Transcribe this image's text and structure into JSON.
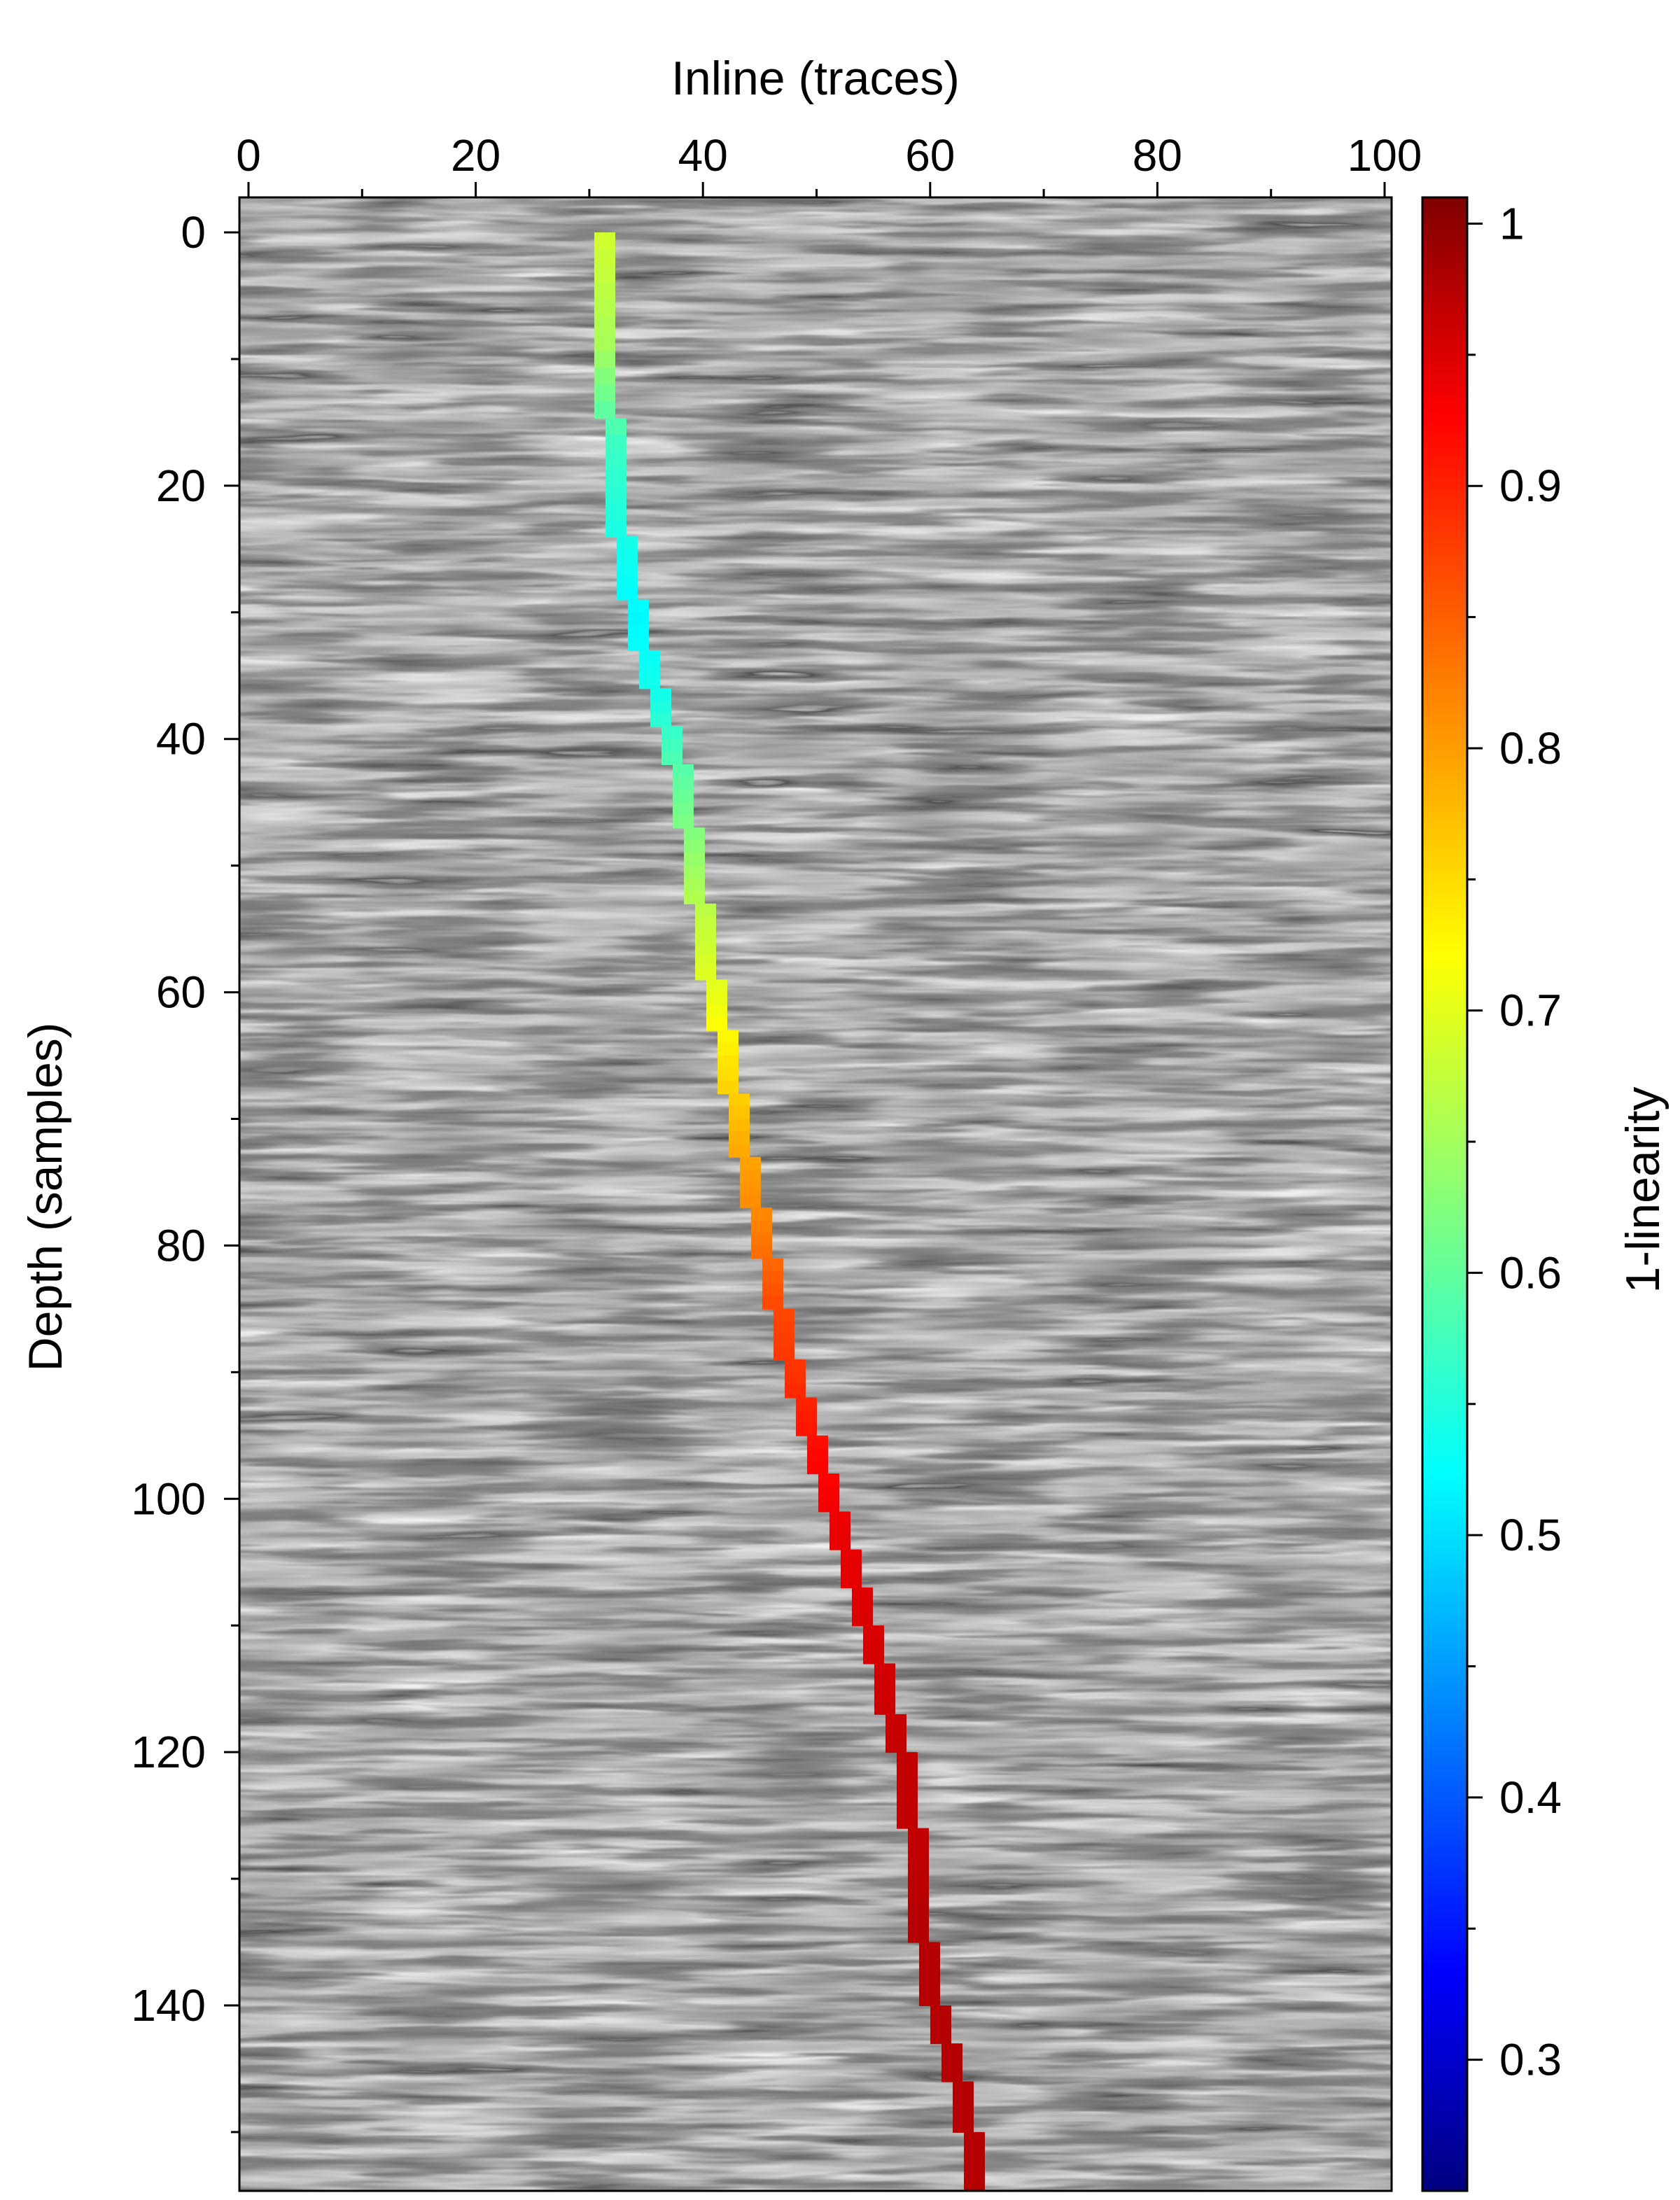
{
  "chart_data": {
    "type": "heatmap",
    "title": "",
    "xlabel": "Inline (traces)",
    "ylabel": "Depth (samples)",
    "x_axis_position": "top",
    "xlim": [
      0,
      101
    ],
    "ylim": [
      0,
      155
    ],
    "y_inverted": true,
    "x_ticks": [
      0,
      20,
      40,
      60,
      80,
      100
    ],
    "y_ticks": [
      0,
      20,
      40,
      60,
      80,
      100,
      120,
      140
    ],
    "background": {
      "description_colormap": "gray",
      "content": "seismic amplitude section"
    },
    "fault_path": {
      "color_by": "1-linearity",
      "points": [
        {
          "x": 31,
          "y": 0,
          "v": 0.69
        },
        {
          "x": 31.5,
          "y": 8,
          "v": 0.66
        },
        {
          "x": 32,
          "y": 16,
          "v": 0.58
        },
        {
          "x": 33,
          "y": 24,
          "v": 0.55
        },
        {
          "x": 34,
          "y": 30,
          "v": 0.53
        },
        {
          "x": 36,
          "y": 36,
          "v": 0.55
        },
        {
          "x": 38,
          "y": 42,
          "v": 0.6
        },
        {
          "x": 39,
          "y": 48,
          "v": 0.64
        },
        {
          "x": 40,
          "y": 54,
          "v": 0.68
        },
        {
          "x": 41,
          "y": 60,
          "v": 0.71
        },
        {
          "x": 42.5,
          "y": 66,
          "v": 0.75
        },
        {
          "x": 43.5,
          "y": 72,
          "v": 0.79
        },
        {
          "x": 45,
          "y": 78,
          "v": 0.82
        },
        {
          "x": 46.5,
          "y": 84,
          "v": 0.86
        },
        {
          "x": 48,
          "y": 90,
          "v": 0.88
        },
        {
          "x": 50,
          "y": 96,
          "v": 0.91
        },
        {
          "x": 52,
          "y": 102,
          "v": 0.93
        },
        {
          "x": 54,
          "y": 108,
          "v": 0.94
        },
        {
          "x": 56,
          "y": 114,
          "v": 0.95
        },
        {
          "x": 57.5,
          "y": 120,
          "v": 0.96
        },
        {
          "x": 58.5,
          "y": 126,
          "v": 0.96
        },
        {
          "x": 59,
          "y": 132,
          "v": 0.97
        },
        {
          "x": 60,
          "y": 138,
          "v": 0.97
        },
        {
          "x": 62,
          "y": 144,
          "v": 0.97
        },
        {
          "x": 63.5,
          "y": 150,
          "v": 0.97
        },
        {
          "x": 64.5,
          "y": 155,
          "v": 0.97
        }
      ]
    },
    "colorbar": {
      "label": "1-linearity",
      "colormap": "jet",
      "range": [
        0.25,
        1.01
      ],
      "ticks": [
        0.3,
        0.4,
        0.5,
        0.6,
        0.7,
        0.8,
        0.9,
        1
      ]
    }
  }
}
